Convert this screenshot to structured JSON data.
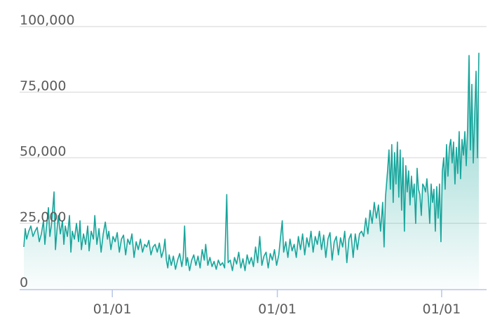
{
  "chart_data": {
    "type": "area",
    "title": "",
    "xlabel": "",
    "ylabel": "",
    "ylim": [
      0,
      100000
    ],
    "grid": true,
    "legend": "none",
    "colors": {
      "line": "#17a59b",
      "fill_top": "#17a59b",
      "grid": "#e2e2e2",
      "axis": "#b7c6e6",
      "tick_text": "#5b5b5b"
    },
    "y_ticks": [
      {
        "value": 0,
        "label": "0"
      },
      {
        "value": 25000,
        "label": "25,000"
      },
      {
        "value": 50000,
        "label": "50,000"
      },
      {
        "value": 75000,
        "label": "75,000"
      },
      {
        "value": 100000,
        "label": "100,000"
      }
    ],
    "x_ticks": [
      {
        "day": 126,
        "label": "01/01"
      },
      {
        "day": 361,
        "label": "01/01"
      },
      {
        "day": 595,
        "label": "01/01"
      }
    ],
    "x_range": [
      0,
      655
    ],
    "series": [
      {
        "points": [
          [
            0,
            16000
          ],
          [
            2,
            23000
          ],
          [
            4,
            19000
          ],
          [
            7,
            22000
          ],
          [
            10,
            24000
          ],
          [
            13,
            20000
          ],
          [
            16,
            22000
          ],
          [
            19,
            23500
          ],
          [
            22,
            18000
          ],
          [
            25,
            21000
          ],
          [
            28,
            26000
          ],
          [
            30,
            17000
          ],
          [
            32,
            23000
          ],
          [
            35,
            31000
          ],
          [
            37,
            20000
          ],
          [
            39,
            24000
          ],
          [
            41,
            30000
          ],
          [
            43,
            37000
          ],
          [
            45,
            15000
          ],
          [
            47,
            22000
          ],
          [
            49,
            28000
          ],
          [
            52,
            21000
          ],
          [
            55,
            26000
          ],
          [
            57,
            17000
          ],
          [
            59,
            24000
          ],
          [
            62,
            20000
          ],
          [
            65,
            28000
          ],
          [
            67,
            14000
          ],
          [
            69,
            22000
          ],
          [
            72,
            19000
          ],
          [
            75,
            25000
          ],
          [
            78,
            18000
          ],
          [
            80,
            26000
          ],
          [
            82,
            15000
          ],
          [
            85,
            21000
          ],
          [
            88,
            17000
          ],
          [
            91,
            24000
          ],
          [
            93,
            14500
          ],
          [
            96,
            22000
          ],
          [
            99,
            19000
          ],
          [
            101,
            28000
          ],
          [
            104,
            17000
          ],
          [
            107,
            23000
          ],
          [
            110,
            14000
          ],
          [
            113,
            21000
          ],
          [
            116,
            25500
          ],
          [
            119,
            19000
          ],
          [
            121,
            22000
          ],
          [
            124,
            15000
          ],
          [
            127,
            20000
          ],
          [
            130,
            18000
          ],
          [
            133,
            21500
          ],
          [
            136,
            14000
          ],
          [
            139,
            19000
          ],
          [
            142,
            20500
          ],
          [
            145,
            13000
          ],
          [
            148,
            19000
          ],
          [
            151,
            17000
          ],
          [
            154,
            21000
          ],
          [
            157,
            12000
          ],
          [
            160,
            18000
          ],
          [
            163,
            15000
          ],
          [
            166,
            19000
          ],
          [
            169,
            14000
          ],
          [
            172,
            17000
          ],
          [
            175,
            16000
          ],
          [
            178,
            18500
          ],
          [
            181,
            13000
          ],
          [
            184,
            16000
          ],
          [
            187,
            17000
          ],
          [
            190,
            14000
          ],
          [
            193,
            17500
          ],
          [
            196,
            12000
          ],
          [
            199,
            15000
          ],
          [
            201,
            19000
          ],
          [
            203,
            11000
          ],
          [
            205,
            8000
          ],
          [
            207,
            13000
          ],
          [
            210,
            9000
          ],
          [
            213,
            12500
          ],
          [
            216,
            7500
          ],
          [
            219,
            11000
          ],
          [
            222,
            13500
          ],
          [
            225,
            8500
          ],
          [
            227,
            12000
          ],
          [
            229,
            24000
          ],
          [
            231,
            9000
          ],
          [
            233,
            12000
          ],
          [
            236,
            7000
          ],
          [
            239,
            11000
          ],
          [
            242,
            13000
          ],
          [
            245,
            9000
          ],
          [
            248,
            12500
          ],
          [
            251,
            8000
          ],
          [
            254,
            15000
          ],
          [
            257,
            11000
          ],
          [
            259,
            17000
          ],
          [
            262,
            9000
          ],
          [
            265,
            12000
          ],
          [
            268,
            8500
          ],
          [
            271,
            10500
          ],
          [
            274,
            7500
          ],
          [
            277,
            11000
          ],
          [
            280,
            9000
          ],
          [
            283,
            10000
          ],
          [
            286,
            8000
          ],
          [
            289,
            36000
          ],
          [
            291,
            10000
          ],
          [
            294,
            11000
          ],
          [
            297,
            7000
          ],
          [
            300,
            12000
          ],
          [
            303,
            9500
          ],
          [
            306,
            14000
          ],
          [
            309,
            8000
          ],
          [
            312,
            11500
          ],
          [
            315,
            7000
          ],
          [
            318,
            13000
          ],
          [
            321,
            9500
          ],
          [
            324,
            12000
          ],
          [
            327,
            8500
          ],
          [
            330,
            16000
          ],
          [
            333,
            10000
          ],
          [
            336,
            20000
          ],
          [
            339,
            9000
          ],
          [
            342,
            12500
          ],
          [
            345,
            14000
          ],
          [
            348,
            8000
          ],
          [
            351,
            13500
          ],
          [
            354,
            11000
          ],
          [
            357,
            15000
          ],
          [
            360,
            9000
          ],
          [
            363,
            13000
          ],
          [
            366,
            21000
          ],
          [
            368,
            26000
          ],
          [
            370,
            14000
          ],
          [
            373,
            18000
          ],
          [
            376,
            12000
          ],
          [
            379,
            19000
          ],
          [
            382,
            14500
          ],
          [
            385,
            17000
          ],
          [
            388,
            12000
          ],
          [
            391,
            20000
          ],
          [
            394,
            15000
          ],
          [
            397,
            21000
          ],
          [
            400,
            13000
          ],
          [
            403,
            19500
          ],
          [
            406,
            16000
          ],
          [
            409,
            22000
          ],
          [
            412,
            14000
          ],
          [
            415,
            20000
          ],
          [
            418,
            17000
          ],
          [
            421,
            22000
          ],
          [
            424,
            15000
          ],
          [
            427,
            20500
          ],
          [
            430,
            12000
          ],
          [
            433,
            19000
          ],
          [
            436,
            21500
          ],
          [
            439,
            11000
          ],
          [
            442,
            18000
          ],
          [
            445,
            20000
          ],
          [
            448,
            13000
          ],
          [
            451,
            19500
          ],
          [
            454,
            16000
          ],
          [
            457,
            22000
          ],
          [
            460,
            10000
          ],
          [
            463,
            19000
          ],
          [
            466,
            21000
          ],
          [
            469,
            12000
          ],
          [
            472,
            21000
          ],
          [
            475,
            15000
          ],
          [
            478,
            21000
          ],
          [
            481,
            22000
          ],
          [
            484,
            20000
          ],
          [
            487,
            27000
          ],
          [
            490,
            21000
          ],
          [
            493,
            30000
          ],
          [
            496,
            25000
          ],
          [
            499,
            33000
          ],
          [
            502,
            27000
          ],
          [
            505,
            32000
          ],
          [
            508,
            22000
          ],
          [
            511,
            33000
          ],
          [
            513,
            16000
          ],
          [
            515,
            35000
          ],
          [
            518,
            45000
          ],
          [
            520,
            53000
          ],
          [
            522,
            38000
          ],
          [
            524,
            55000
          ],
          [
            526,
            33000
          ],
          [
            528,
            52000
          ],
          [
            530,
            40000
          ],
          [
            532,
            56000
          ],
          [
            534,
            35000
          ],
          [
            536,
            53000
          ],
          [
            538,
            30000
          ],
          [
            540,
            50000
          ],
          [
            542,
            22000
          ],
          [
            544,
            47000
          ],
          [
            546,
            37000
          ],
          [
            548,
            45000
          ],
          [
            550,
            32000
          ],
          [
            552,
            43000
          ],
          [
            554,
            35000
          ],
          [
            556,
            40000
          ],
          [
            558,
            25000
          ],
          [
            560,
            46000
          ],
          [
            562,
            38000
          ],
          [
            564,
            36000
          ],
          [
            566,
            28000
          ],
          [
            568,
            40000
          ],
          [
            570,
            39000
          ],
          [
            572,
            37000
          ],
          [
            574,
            42000
          ],
          [
            576,
            35000
          ],
          [
            578,
            25000
          ],
          [
            580,
            40000
          ],
          [
            582,
            33000
          ],
          [
            584,
            38000
          ],
          [
            586,
            22000
          ],
          [
            588,
            39000
          ],
          [
            590,
            27000
          ],
          [
            592,
            40000
          ],
          [
            594,
            18000
          ],
          [
            596,
            45000
          ],
          [
            598,
            50000
          ],
          [
            600,
            38000
          ],
          [
            602,
            55000
          ],
          [
            604,
            43000
          ],
          [
            606,
            54000
          ],
          [
            608,
            57000
          ],
          [
            610,
            48000
          ],
          [
            612,
            56000
          ],
          [
            614,
            40000
          ],
          [
            616,
            54000
          ],
          [
            618,
            44000
          ],
          [
            620,
            60000
          ],
          [
            622,
            42000
          ],
          [
            624,
            57000
          ],
          [
            626,
            51000
          ],
          [
            628,
            60000
          ],
          [
            630,
            47000
          ],
          [
            632,
            62000
          ],
          [
            634,
            89000
          ],
          [
            636,
            53000
          ],
          [
            638,
            78000
          ],
          [
            640,
            48000
          ],
          [
            642,
            66000
          ],
          [
            644,
            83000
          ],
          [
            646,
            50000
          ],
          [
            648,
            90000
          ]
        ]
      }
    ]
  }
}
